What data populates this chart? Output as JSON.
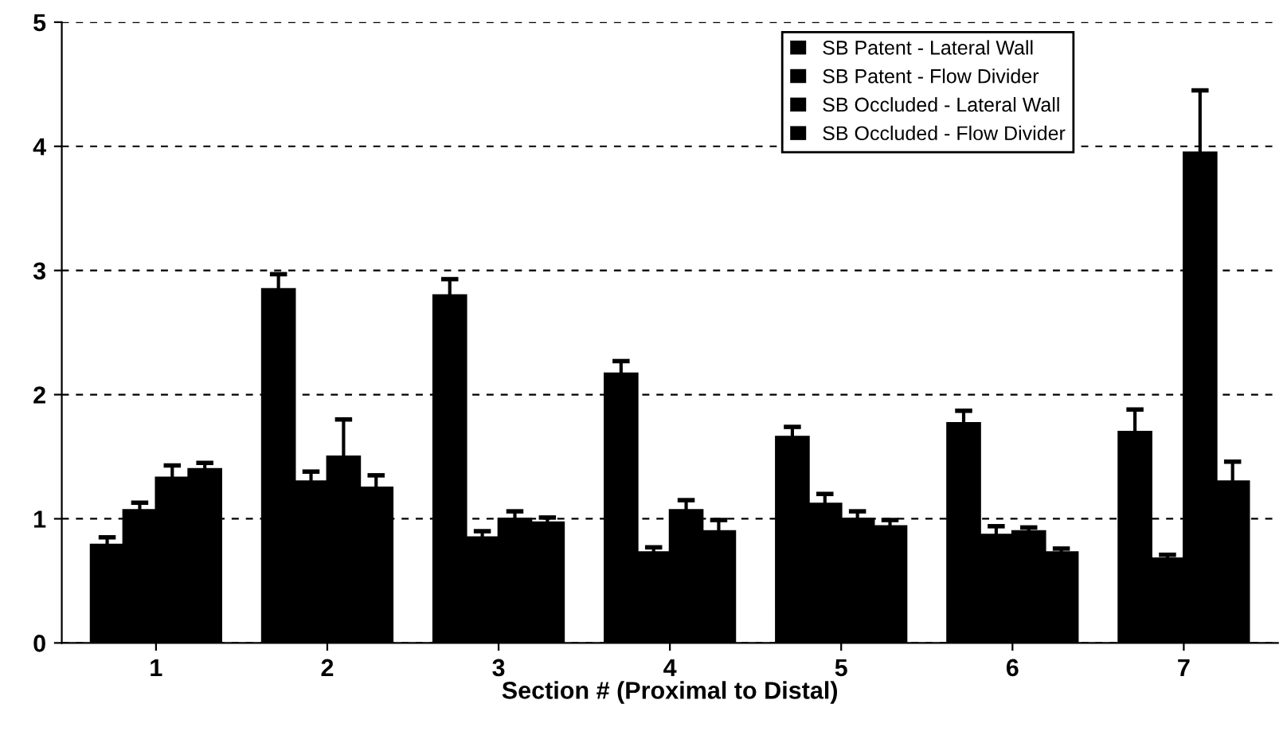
{
  "chart_data": {
    "type": "bar",
    "xlabel": "Section # (Proximal to Distal)",
    "categories": [
      "1",
      "2",
      "3",
      "4",
      "5",
      "6",
      "7"
    ],
    "series": [
      {
        "name": "SB Patent - Lateral Wall",
        "color": "#000000",
        "values": [
          0.79,
          2.85,
          2.8,
          2.17,
          1.66,
          1.77,
          1.7
        ],
        "errors": [
          [
            0.79,
            0.85
          ],
          [
            2.85,
            2.97
          ],
          [
            2.8,
            2.93
          ],
          [
            2.17,
            2.27
          ],
          [
            1.66,
            1.74
          ],
          [
            1.77,
            1.87
          ],
          [
            1.7,
            1.88
          ]
        ]
      },
      {
        "name": "SB Patent - Flow Divider",
        "color": "#000000",
        "values": [
          1.07,
          1.3,
          0.85,
          0.73,
          1.12,
          0.87,
          0.68
        ],
        "errors": [
          [
            1.07,
            1.13
          ],
          [
            1.3,
            1.38
          ],
          [
            0.85,
            0.9
          ],
          [
            0.73,
            0.77
          ],
          [
            1.12,
            1.2
          ],
          [
            0.87,
            0.94
          ],
          [
            0.68,
            0.71
          ]
        ]
      },
      {
        "name": "SB Occluded - Lateral Wall",
        "color": "#000000",
        "values": [
          1.33,
          1.5,
          1.0,
          1.07,
          1.0,
          0.9,
          3.95
        ],
        "errors": [
          [
            1.33,
            1.43
          ],
          [
            1.5,
            1.8
          ],
          [
            1.0,
            1.06
          ],
          [
            1.07,
            1.15
          ],
          [
            1.0,
            1.06
          ],
          [
            0.9,
            0.93
          ],
          [
            3.95,
            4.45
          ]
        ]
      },
      {
        "name": "SB Occluded - Flow Divider",
        "color": "#000000",
        "values": [
          1.4,
          1.25,
          0.97,
          0.9,
          0.94,
          0.73,
          1.3
        ],
        "errors": [
          [
            1.4,
            1.45
          ],
          [
            1.25,
            1.35
          ],
          [
            0.97,
            1.01
          ],
          [
            0.9,
            0.99
          ],
          [
            0.94,
            0.99
          ],
          [
            0.73,
            0.76
          ],
          [
            1.3,
            1.46
          ]
        ]
      }
    ],
    "ylim": [
      0,
      5
    ],
    "yticks": [
      0,
      1,
      2,
      3,
      4,
      5
    ],
    "grid": "y",
    "legend": "top right"
  }
}
